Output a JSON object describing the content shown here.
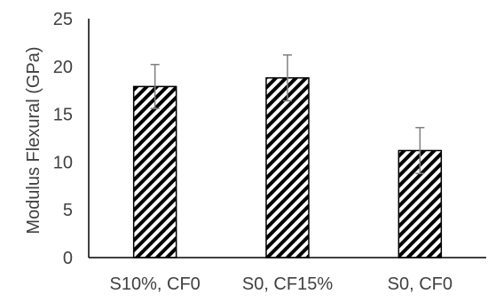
{
  "chart_data": {
    "type": "bar",
    "categories": [
      "S10%, CF0",
      "S0, CF15%",
      "S0, CF0"
    ],
    "values": [
      17.9,
      18.8,
      11.2
    ],
    "errors": [
      2.3,
      2.4,
      2.4
    ],
    "title": "",
    "xlabel": "",
    "ylabel": "Modulus Flexural (GPa)",
    "ylim": [
      0,
      25
    ],
    "yticks": [
      0,
      5,
      10,
      15,
      20,
      25
    ],
    "grid": false,
    "legend": "none",
    "fill_pattern": "diagonal-hatch",
    "colors": {
      "bar_outline": "#000000",
      "hatch": "#000000",
      "error_bar": "#7f7f7f",
      "axis": "#000000",
      "text": "#404040"
    }
  }
}
